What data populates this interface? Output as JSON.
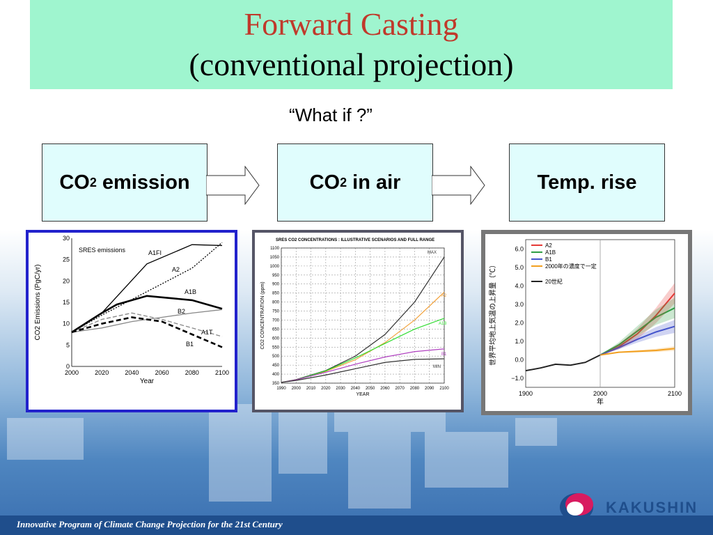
{
  "title": {
    "line1": "Forward Casting",
    "line2": "(conventional projection)"
  },
  "subtitle": "“What if ?”",
  "flow": [
    {
      "main": "CO",
      "sub": "2",
      "rest": " emission"
    },
    {
      "main": "CO",
      "sub": "2",
      "rest": " in air"
    },
    {
      "main": "Temp. rise",
      "sub": "",
      "rest": ""
    }
  ],
  "colors": {
    "title_bg": "#9ff5cf",
    "title_red": "#c0392b",
    "box_bg": "#e0fdfd",
    "panel1_border": "#2222cc",
    "panel2_border": "#555566",
    "panel3_border": "#777777",
    "footer": "#1f4e8c"
  },
  "panels": [
    {
      "chart_data": {
        "type": "line",
        "title": "SRES emissions",
        "xlabel": "Year",
        "ylabel": "CO2 Emissions (PgC/yr)",
        "xlim": [
          2000,
          2100
        ],
        "ylim": [
          0,
          30
        ],
        "xticks": [
          2000,
          2020,
          2040,
          2060,
          2080,
          2100
        ],
        "yticks": [
          0,
          5,
          10,
          15,
          20,
          25,
          30
        ],
        "series": [
          {
            "name": "A1FI",
            "style": "solid-thin",
            "color": "#000000",
            "x": [
              2000,
              2020,
              2050,
              2080,
              2100
            ],
            "y": [
              8,
              12.5,
              24,
              28.5,
              28.3
            ]
          },
          {
            "name": "A2",
            "style": "dotted",
            "color": "#000000",
            "x": [
              2000,
              2020,
              2050,
              2080,
              2100
            ],
            "y": [
              8,
              12,
              17.5,
              23,
              29
            ]
          },
          {
            "name": "A1B",
            "style": "solid-thick",
            "color": "#000000",
            "x": [
              2000,
              2020,
              2030,
              2050,
              2080,
              2100
            ],
            "y": [
              8,
              12.5,
              14.5,
              16.5,
              15.5,
              13.5
            ]
          },
          {
            "name": "B2",
            "style": "solid-gray",
            "color": "#888888",
            "x": [
              2000,
              2020,
              2040,
              2060,
              2080,
              2100
            ],
            "y": [
              8,
              9,
              10.5,
              11.5,
              12.5,
              13.3
            ]
          },
          {
            "name": "A1T",
            "style": "dashed-gray",
            "color": "#888888",
            "x": [
              2000,
              2020,
              2040,
              2060,
              2080,
              2100
            ],
            "y": [
              8,
              11,
              12.5,
              11,
              9,
              7
            ]
          },
          {
            "name": "B1",
            "style": "dashed-thick",
            "color": "#000000",
            "x": [
              2000,
              2020,
              2040,
              2060,
              2080,
              2100
            ],
            "y": [
              8,
              10,
              11.5,
              10.5,
              7.5,
              4.5
            ]
          }
        ]
      }
    },
    {
      "chart_data": {
        "type": "line",
        "title": "SRES CO2 CONCENTRATIONS : ILLUSTRATIVE SCENARIOS AND FULL RANGE",
        "xlabel": "YEAR",
        "ylabel": "CO2 CONCENTRATION (ppm)",
        "xlim": [
          1990,
          2100
        ],
        "ylim": [
          350,
          1100
        ],
        "xticks": [
          1990,
          2000,
          2010,
          2020,
          2030,
          2040,
          2050,
          2060,
          2070,
          2080,
          2090,
          2100
        ],
        "yticks": [
          350,
          400,
          450,
          500,
          550,
          600,
          650,
          700,
          750,
          800,
          850,
          900,
          950,
          1000,
          1050,
          1100
        ],
        "series": [
          {
            "name": "MAX",
            "color": "#333333",
            "x": [
              1990,
              2000,
              2020,
              2040,
              2060,
              2080,
              2100
            ],
            "y": [
              354,
              370,
              420,
              500,
              620,
              800,
              1050
            ]
          },
          {
            "name": "A2",
            "color": "#f2a23c",
            "x": [
              1990,
              2000,
              2020,
              2040,
              2060,
              2080,
              2100
            ],
            "y": [
              354,
              368,
              415,
              480,
              575,
              700,
              855
            ]
          },
          {
            "name": "A1B",
            "color": "#33dd33",
            "x": [
              1990,
              2000,
              2020,
              2040,
              2060,
              2080,
              2100
            ],
            "y": [
              354,
              368,
              418,
              490,
              570,
              650,
              710
            ]
          },
          {
            "name": "B1",
            "color": "#b040c0",
            "x": [
              1990,
              2000,
              2020,
              2040,
              2060,
              2080,
              2100
            ],
            "y": [
              354,
              368,
              410,
              455,
              495,
              525,
              540
            ]
          },
          {
            "name": "MIN",
            "color": "#333333",
            "x": [
              1990,
              2000,
              2020,
              2040,
              2060,
              2080,
              2100
            ],
            "y": [
              354,
              365,
              395,
              430,
              465,
              482,
              485
            ]
          }
        ]
      }
    },
    {
      "chart_data": {
        "type": "line",
        "xlabel": "年",
        "ylabel": "世界平均地上気温の上昇量（℃）",
        "xlim": [
          1900,
          2100
        ],
        "ylim": [
          -1.5,
          6.5
        ],
        "xticks": [
          1900,
          2000,
          2100
        ],
        "yticks": [
          -1.0,
          0.0,
          1.0,
          2.0,
          3.0,
          4.0,
          5.0,
          6.0
        ],
        "ytick_labels": [
          "−1.0",
          "0.0",
          "1.0",
          "2.0",
          "3.0",
          "4.0",
          "5.0",
          "6.0"
        ],
        "series": [
          {
            "name": "A2",
            "color": "#e53935",
            "x": [
              2000,
              2025,
              2050,
              2075,
              2100
            ],
            "y": [
              0.25,
              0.7,
              1.4,
              2.4,
              3.6
            ]
          },
          {
            "name": "A1B",
            "color": "#2e9e44",
            "x": [
              2000,
              2025,
              2050,
              2075,
              2100
            ],
            "y": [
              0.25,
              0.8,
              1.55,
              2.3,
              2.8
            ]
          },
          {
            "name": "B1",
            "color": "#4455cc",
            "x": [
              2000,
              2025,
              2050,
              2075,
              2100
            ],
            "y": [
              0.25,
              0.65,
              1.1,
              1.5,
              1.8
            ]
          },
          {
            "name": "2000年の濃度で一定",
            "color": "#f2a020",
            "x": [
              2000,
              2025,
              2050,
              2075,
              2100
            ],
            "y": [
              0.25,
              0.4,
              0.45,
              0.5,
              0.6
            ]
          },
          {
            "name": "20世紀",
            "color": "#222222",
            "x": [
              1900,
              1920,
              1940,
              1960,
              1980,
              2000
            ],
            "y": [
              -0.6,
              -0.45,
              -0.25,
              -0.3,
              -0.15,
              0.25
            ]
          }
        ]
      }
    }
  ],
  "footer": "Innovative Program of Climate Change Projection for the 21st Century",
  "logo": "KAKUSHIN"
}
